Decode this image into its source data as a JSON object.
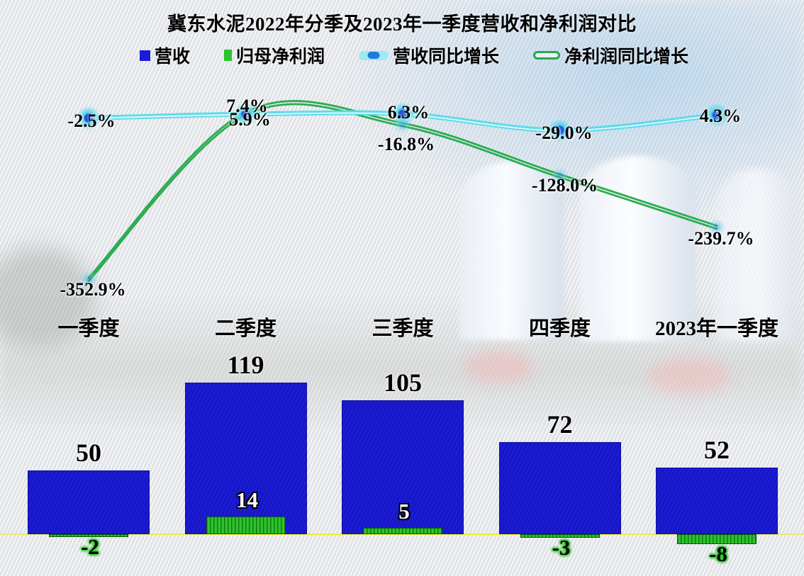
{
  "title": "冀东水泥2022年分季及2023年一季度营收和净利润对比",
  "colors": {
    "revenue_bar": "#1b1bd8",
    "profit_bar": "#2cc42c",
    "revenue_line": "#5cd9e8",
    "profit_line": "#22a848",
    "axis_line": "#efef2e",
    "marker_dot": "#1455d6"
  },
  "chart_data": {
    "type": "combo",
    "title": "冀东水泥2022年分季及2023年一季度营收和净利润对比",
    "categories": [
      "一季度",
      "二季度",
      "三季度",
      "四季度",
      "2023年一季度"
    ],
    "series": [
      {
        "name": "营收",
        "type": "bar",
        "values": [
          50,
          119,
          105,
          72,
          52
        ],
        "labels": [
          "50",
          "119",
          "105",
          "72",
          "52"
        ],
        "color": "#1b1bd8"
      },
      {
        "name": "归母净利润",
        "type": "bar",
        "values": [
          -2,
          14,
          5,
          -3,
          -8
        ],
        "labels": [
          "-2",
          "14",
          "5",
          "-3",
          "-8"
        ],
        "color": "#2cc42c"
      },
      {
        "name": "营收同比增长",
        "type": "line",
        "values": [
          -2.5,
          5.9,
          6.3,
          -29.0,
          4.3
        ],
        "labels": [
          "-2.5%",
          "5.9%",
          "6.3%",
          "-29.0%",
          "4.3%"
        ],
        "color": "#5cd9e8"
      },
      {
        "name": "净利润同比增长",
        "type": "line",
        "values": [
          -352.9,
          7.4,
          -16.8,
          -128.0,
          -239.7
        ],
        "labels": [
          "-352.9%",
          "7.4%",
          "-16.8%",
          "-128.0%",
          "-239.7%"
        ],
        "color": "#22a848"
      }
    ],
    "xlabel": "",
    "ylabel": "",
    "grid": false,
    "legend_position": "top"
  }
}
